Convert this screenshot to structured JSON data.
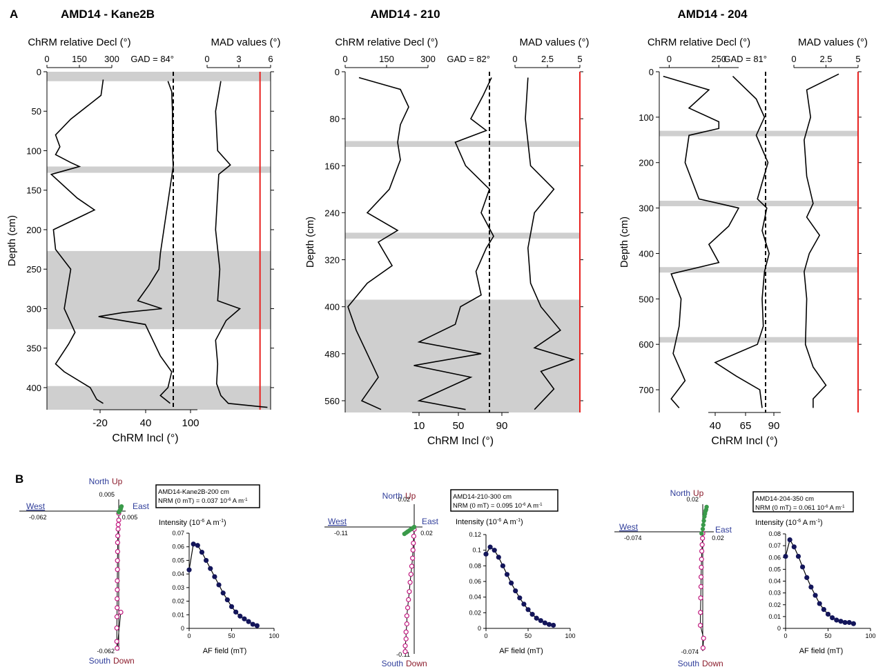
{
  "panel_labels": [
    "A",
    "B"
  ],
  "colors": {
    "gap_band": "#cfcfcf",
    "mad_limit_line": "#e8211f",
    "vertical_component": "#3a9a4a",
    "horizontal_component": "#c0187e",
    "intensity_points": "#13155a",
    "axis_north_south_west": "#2f3d9a",
    "axis_up_down": "#8a1a2a"
  },
  "chart_data": [
    {
      "type": "line",
      "title": "AMD14 - Kane2B",
      "subtitle_decl": "ChRM relative Decl (°)",
      "subtitle_mad": "MAD values (°)",
      "xlabel_incl": "ChRM Incl (°)",
      "ylabel": "Depth (cm)",
      "y_ticks": [
        "0",
        "50",
        "100",
        "150",
        "200",
        "250",
        "300",
        "350",
        "400"
      ],
      "decl_ticks": [
        "0",
        "150",
        "300"
      ],
      "incl_ticks": [
        "-20",
        "40",
        "100"
      ],
      "mad_ticks": [
        "0",
        "3",
        "6"
      ],
      "gad_label": "GAD = 84°",
      "gad": 84,
      "mad_limit": 5,
      "ylim": [
        0,
        428
      ],
      "gap_intervals": [
        [
          0,
          12
        ],
        [
          120,
          128
        ],
        [
          227,
          326
        ],
        [
          398,
          428
        ]
      ],
      "series": {
        "decl": {
          "depth": [
            10,
            30,
            60,
            80,
            95,
            105,
            115,
            120,
            130,
            160,
            175,
            200,
            225,
            250,
            300,
            330,
            345,
            370,
            380,
            400,
            415,
            420
          ],
          "values": [
            260,
            250,
            110,
            40,
            60,
            40,
            110,
            150,
            20,
            140,
            220,
            30,
            40,
            110,
            80,
            130,
            100,
            40,
            80,
            200,
            230,
            260
          ]
        },
        "incl": {
          "depth": [
            12,
            25,
            50,
            100,
            120,
            230,
            250,
            270,
            290,
            300,
            305,
            310,
            320,
            360,
            380,
            400,
            410,
            420
          ],
          "values": [
            70,
            75,
            76,
            76,
            77,
            60,
            58,
            45,
            30,
            62,
            10,
            -22,
            40,
            60,
            75,
            70,
            60,
            73
          ]
        },
        "mad": {
          "depth": [
            12,
            50,
            100,
            118,
            130,
            200,
            250,
            290,
            300,
            315,
            340,
            370,
            395,
            410,
            420,
            425
          ],
          "values": [
            1.3,
            0.8,
            1.0,
            2.2,
            1.1,
            0.8,
            1.2,
            1.0,
            3.1,
            1.8,
            0.8,
            1.0,
            0.9,
            1.3,
            2.0,
            5.7
          ]
        }
      }
    },
    {
      "type": "line",
      "title": "AMD14 - 210",
      "subtitle_decl": "ChRM relative Decl (°)",
      "subtitle_mad": "MAD values (°)",
      "xlabel_incl": "ChRM Incl (°)",
      "ylabel": "Depth (cm)",
      "y_ticks": [
        "0",
        "80",
        "160",
        "240",
        "320",
        "400",
        "480",
        "560"
      ],
      "decl_ticks": [
        "0",
        "150",
        "300"
      ],
      "incl_ticks": [
        "10",
        "50",
        "90"
      ],
      "mad_ticks": [
        "0",
        "2.5",
        "5"
      ],
      "gad_label": "GAD = 82°",
      "gad": 82,
      "mad_limit": 5,
      "ylim": [
        0,
        580
      ],
      "gap_intervals": [
        [
          118,
          128
        ],
        [
          274,
          284
        ],
        [
          388,
          580
        ]
      ],
      "series": {
        "decl": {
          "depth": [
            10,
            30,
            60,
            90,
            120,
            150,
            200,
            240,
            270,
            290,
            330,
            360,
            400,
            440,
            480,
            520,
            560,
            575
          ],
          "values": [
            50,
            200,
            230,
            200,
            190,
            200,
            160,
            80,
            190,
            120,
            170,
            80,
            10,
            40,
            80,
            120,
            60,
            130
          ]
        },
        "incl": {
          "depth": [
            10,
            40,
            80,
            100,
            120,
            160,
            200,
            240,
            280,
            300,
            340,
            380,
            400,
            430,
            460,
            480,
            500,
            520,
            560,
            575
          ],
          "values": [
            80,
            72,
            60,
            75,
            45,
            55,
            78,
            70,
            82,
            75,
            65,
            70,
            50,
            45,
            10,
            70,
            5,
            60,
            10,
            55
          ]
        },
        "mad": {
          "depth": [
            10,
            80,
            160,
            200,
            240,
            300,
            360,
            400,
            440,
            470,
            490,
            510,
            540,
            575
          ],
          "values": [
            1.0,
            0.8,
            1.2,
            3.0,
            1.5,
            1.0,
            1.2,
            2.0,
            3.5,
            1.5,
            4.5,
            2.0,
            3.0,
            1.5
          ]
        }
      }
    },
    {
      "type": "line",
      "title": "AMD14 - 204",
      "subtitle_decl": "ChRM relative Decl (°)",
      "subtitle_mad": "MAD values (°)",
      "xlabel_incl": "ChRM Incl (°)",
      "ylabel": "Depth (cm)",
      "y_ticks": [
        "0",
        "100",
        "200",
        "300",
        "400",
        "500",
        "600",
        "700"
      ],
      "decl_ticks": [
        "0",
        "250"
      ],
      "incl_ticks": [
        "40",
        "65",
        "90"
      ],
      "mad_ticks": [
        "0",
        "2.5",
        "5"
      ],
      "gad_label": "GAD = 81°",
      "gad": 81,
      "mad_limit": 5,
      "ylim": [
        0,
        750
      ],
      "gap_intervals": [
        [
          130,
          142
        ],
        [
          284,
          296
        ],
        [
          430,
          442
        ],
        [
          584,
          596
        ]
      ],
      "series": {
        "decl": {
          "depth": [
            10,
            40,
            80,
            110,
            125,
            140,
            200,
            280,
            300,
            340,
            380,
            420,
            445,
            500,
            560,
            620,
            680,
            720,
            740
          ],
          "values": [
            -30,
            200,
            100,
            250,
            250,
            100,
            80,
            150,
            350,
            300,
            200,
            250,
            10,
            60,
            50,
            20,
            80,
            10,
            50
          ]
        },
        "incl": {
          "depth": [
            10,
            60,
            100,
            140,
            200,
            280,
            300,
            350,
            400,
            440,
            500,
            560,
            600,
            640,
            670,
            700,
            740
          ],
          "values": [
            55,
            75,
            82,
            75,
            85,
            76,
            84,
            80,
            86,
            82,
            80,
            81,
            76,
            40,
            58,
            78,
            80
          ]
        },
        "mad": {
          "depth": [
            5,
            40,
            100,
            150,
            230,
            290,
            320,
            360,
            400,
            440,
            500,
            600,
            650,
            690,
            720,
            740
          ],
          "values": [
            3.5,
            1.0,
            1.3,
            0.8,
            1.0,
            1.5,
            1.0,
            2.0,
            1.2,
            0.8,
            1.0,
            0.9,
            1.5,
            2.5,
            1.5,
            1.5
          ]
        }
      }
    },
    {
      "type": "scatter",
      "kind": "zijderveld",
      "title": "AMD14-Kane2B-200 cm",
      "nrm_text": "NRM (0 mT) = 0.037 10",
      "nrm_exp": "-6",
      "nrm_unit": " A m",
      "nrm_unit_exp": "-1",
      "axis_north": "North",
      "axis_up": "Up",
      "axis_east": "East",
      "axis_west": "West",
      "axis_south": "South",
      "axis_down": "Down",
      "tick_top": "0.005",
      "tick_right": "0.005",
      "tick_left": "-0.062",
      "tick_bottom": "-0.062",
      "xlim": [
        -0.062,
        0.005
      ],
      "ylim": [
        -0.062,
        0.005
      ],
      "vertical_projection": {
        "x": [
          0.0,
          0.0005,
          0.001,
          0.0015,
          0.002
        ],
        "y": [
          -0.0005,
          0.0,
          0.0005,
          0.001,
          0.002
        ]
      },
      "horizontal_projection": {
        "x": [
          0.0,
          0.0,
          -0.0003,
          -0.0004,
          -0.0006,
          -0.0007,
          -0.0007,
          -0.0008,
          -0.0008,
          -0.0009,
          -0.0009,
          -0.001,
          -0.001,
          -0.0011,
          -0.0012,
          -0.0012,
          -0.001,
          0.0015
        ],
        "y": [
          -0.001,
          -0.004,
          -0.006,
          -0.008,
          -0.011,
          -0.014,
          -0.018,
          -0.022,
          -0.026,
          -0.031,
          -0.035,
          -0.039,
          -0.043,
          -0.047,
          -0.052,
          -0.058,
          -0.061,
          -0.045
        ]
      }
    },
    {
      "type": "line",
      "title": "AMD14-Kane2B-200 cm",
      "ylabel": "Intensity (10",
      "ylabel_exp": "-6",
      "ylabel_unit": " A m",
      "ylabel_unit_exp": "-1",
      "ylabel_close": ")",
      "xlabel": "AF field (mT)",
      "y_ticks": [
        "0",
        "0.01",
        "0.02",
        "0.03",
        "0.04",
        "0.05",
        "0.06",
        "0.07"
      ],
      "x_ticks": [
        "0",
        "50",
        "100"
      ],
      "xlim": [
        0,
        100
      ],
      "ylim": [
        0,
        0.07
      ],
      "x": [
        0,
        5,
        10,
        15,
        20,
        25,
        30,
        35,
        40,
        45,
        50,
        55,
        60,
        65,
        70,
        75,
        80
      ],
      "y": [
        0.043,
        0.062,
        0.061,
        0.056,
        0.05,
        0.044,
        0.038,
        0.032,
        0.026,
        0.021,
        0.016,
        0.012,
        0.009,
        0.007,
        0.005,
        0.003,
        0.002
      ]
    },
    {
      "type": "scatter",
      "kind": "zijderveld",
      "title": "AMD14-210-300 cm",
      "nrm_text": "NRM (0 mT) = 0.095 10",
      "nrm_exp": "-6",
      "nrm_unit": " A m",
      "nrm_unit_exp": "-1",
      "axis_north": "North",
      "axis_up": "Up",
      "axis_east": "East",
      "axis_west": "West",
      "axis_south": "South",
      "axis_down": "Down",
      "tick_top": "0.02",
      "tick_right": "0.02",
      "tick_left": "-0.11",
      "tick_bottom": "-0.11",
      "xlim": [
        -0.11,
        0.02
      ],
      "ylim": [
        -0.11,
        0.02
      ],
      "vertical_projection": {
        "x": [
          -0.012,
          -0.01,
          -0.008,
          -0.006,
          -0.004,
          -0.002,
          0.0
        ],
        "y": [
          -0.006,
          -0.005,
          -0.004,
          -0.003,
          -0.002,
          -0.001,
          0.0
        ]
      },
      "horizontal_projection": {
        "x": [
          0.0,
          -0.0005,
          -0.001,
          -0.0015,
          -0.002,
          -0.003,
          -0.004,
          -0.005,
          -0.006,
          -0.007,
          -0.008,
          -0.009,
          -0.009,
          -0.01,
          -0.01,
          -0.011,
          -0.011
        ],
        "y": [
          -0.002,
          -0.008,
          -0.014,
          -0.02,
          -0.027,
          -0.034,
          -0.041,
          -0.048,
          -0.056,
          -0.063,
          -0.07,
          -0.077,
          -0.084,
          -0.091,
          -0.097,
          -0.103,
          -0.108
        ]
      }
    },
    {
      "type": "line",
      "title": "AMD14-210-300 cm",
      "ylabel": "Intensity (10",
      "ylabel_exp": "-6",
      "ylabel_unit": " A m",
      "ylabel_unit_exp": "-1",
      "ylabel_close": ")",
      "xlabel": "AF field (mT)",
      "y_ticks": [
        "0",
        "0.02",
        "0.04",
        "0.06",
        "0.08",
        "0.1",
        "0.12"
      ],
      "x_ticks": [
        "0",
        "50",
        "100"
      ],
      "xlim": [
        0,
        100
      ],
      "ylim": [
        0,
        0.12
      ],
      "x": [
        0,
        5,
        10,
        15,
        20,
        25,
        30,
        35,
        40,
        45,
        50,
        55,
        60,
        65,
        70,
        75,
        80
      ],
      "y": [
        0.095,
        0.104,
        0.1,
        0.091,
        0.08,
        0.069,
        0.058,
        0.048,
        0.039,
        0.031,
        0.024,
        0.018,
        0.013,
        0.01,
        0.007,
        0.005,
        0.004
      ]
    },
    {
      "type": "scatter",
      "kind": "zijderveld",
      "title": "AMD14-204-350 cm",
      "nrm_text": "NRM (0 mT) = 0.061 10",
      "nrm_exp": "-6",
      "nrm_unit": " A m",
      "nrm_unit_exp": "-1",
      "axis_north": "North",
      "axis_up": "Up",
      "axis_east": "East",
      "axis_west": "West",
      "axis_south": "South",
      "axis_down": "Down",
      "tick_top": "0.02",
      "tick_right": "0.02",
      "tick_left": "-0.074",
      "tick_bottom": "-0.074",
      "xlim": [
        -0.074,
        0.02
      ],
      "ylim": [
        -0.074,
        0.02
      ],
      "vertical_projection": {
        "x": [
          -0.001,
          0.0,
          0.001,
          0.002,
          0.003,
          0.004,
          0.005,
          0.006,
          0.007
        ],
        "y": [
          -0.001,
          0.002,
          0.005,
          0.008,
          0.011,
          0.013,
          0.015,
          0.016,
          0.018
        ]
      },
      "horizontal_projection": {
        "x": [
          0.0,
          -0.0002,
          -0.0005,
          -0.0008,
          -0.001,
          -0.0012,
          -0.0014,
          -0.0015,
          -0.0017,
          -0.0019,
          -0.002,
          0.0015,
          0.0005
        ],
        "y": [
          -0.001,
          -0.004,
          -0.008,
          -0.012,
          -0.017,
          -0.022,
          -0.028,
          -0.034,
          -0.041,
          -0.05,
          -0.058,
          -0.066,
          -0.072
        ]
      }
    },
    {
      "type": "line",
      "title": "AMD14-204-350 cm",
      "ylabel": "Intensity (10",
      "ylabel_exp": "-6",
      "ylabel_unit": " A m",
      "ylabel_unit_exp": "-1",
      "ylabel_close": ")",
      "xlabel": "AF field (mT)",
      "y_ticks": [
        "0",
        "0.01",
        "0.02",
        "0.03",
        "0.04",
        "0.05",
        "0.06",
        "0.07",
        "0.08"
      ],
      "x_ticks": [
        "0",
        "50",
        "100"
      ],
      "xlim": [
        0,
        100
      ],
      "ylim": [
        0,
        0.08
      ],
      "x": [
        0,
        5,
        10,
        15,
        20,
        25,
        30,
        35,
        40,
        45,
        50,
        55,
        60,
        65,
        70,
        75,
        80
      ],
      "y": [
        0.061,
        0.075,
        0.069,
        0.061,
        0.052,
        0.043,
        0.035,
        0.028,
        0.021,
        0.016,
        0.012,
        0.009,
        0.007,
        0.006,
        0.005,
        0.005,
        0.004
      ]
    }
  ]
}
